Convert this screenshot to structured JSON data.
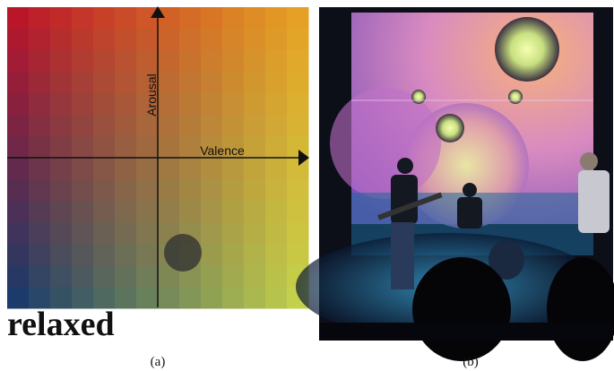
{
  "panel_a": {
    "y_axis_label": "Arousal",
    "x_axis_label": "Valence",
    "mood_label": "relaxed",
    "caption": "(a)"
  },
  "panel_b": {
    "caption": "(b)"
  }
}
